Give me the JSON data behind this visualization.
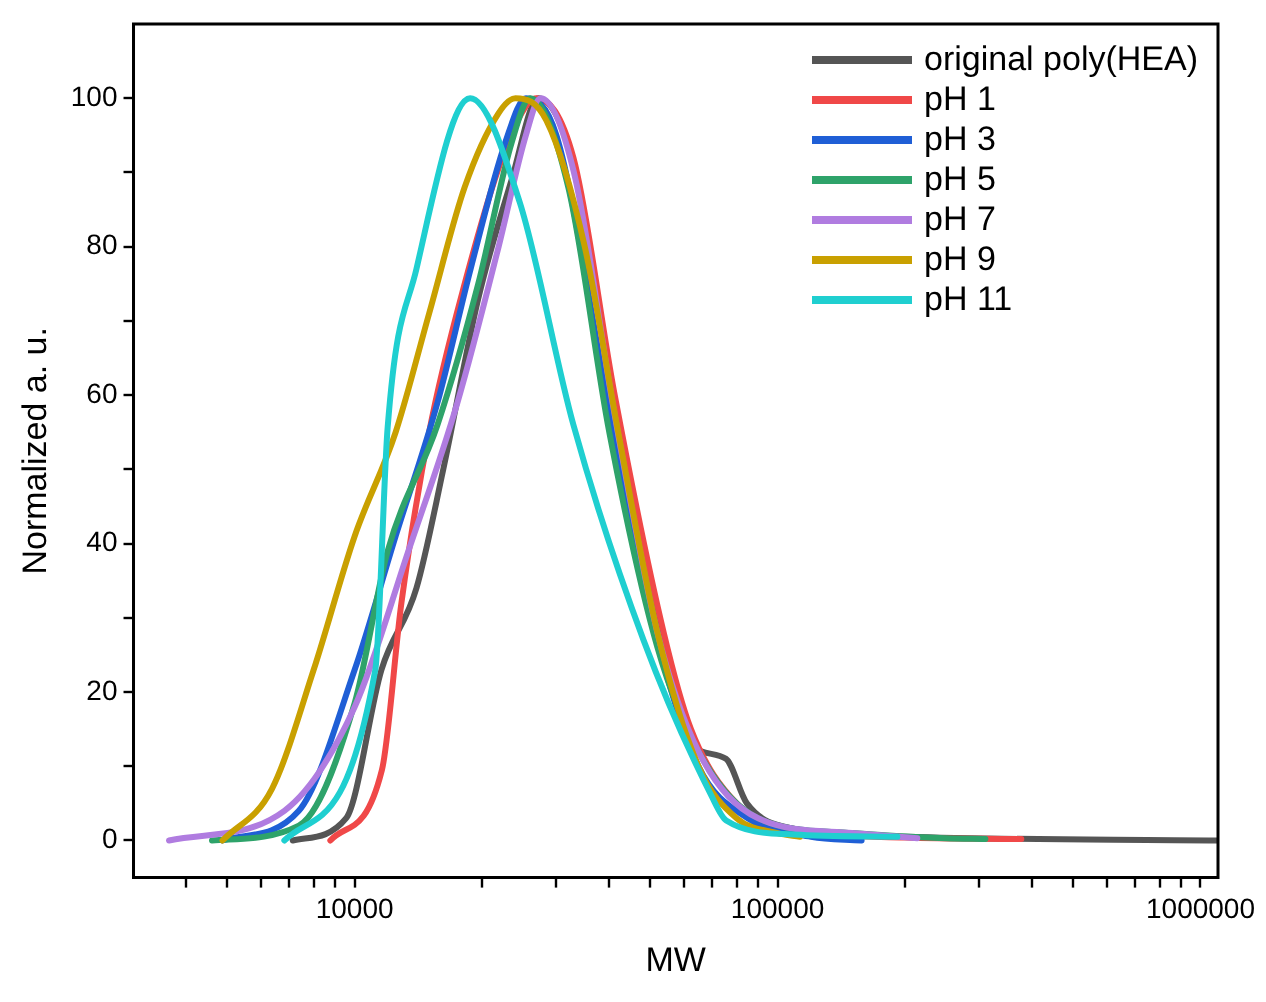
{
  "chart_data": {
    "type": "line",
    "xlabel": "MW",
    "ylabel": "Normalized a. u.",
    "log": "x",
    "grid": false,
    "legend": "top right",
    "marker": "none",
    "line_style": "solid",
    "xlim": [
      3000,
      1100000
    ],
    "xticks": [
      {
        "value": 4000,
        "label": null
      },
      {
        "value": 5000,
        "label": null
      },
      {
        "value": 6000,
        "label": null
      },
      {
        "value": 7000,
        "label": null
      },
      {
        "value": 8000,
        "label": null
      },
      {
        "value": 9000,
        "label": null
      },
      10000,
      {
        "value": 20000,
        "label": null
      },
      {
        "value": 30000,
        "label": null
      },
      {
        "value": 40000,
        "label": null
      },
      {
        "value": 50000,
        "label": null
      },
      {
        "value": 60000,
        "label": null
      },
      {
        "value": 70000,
        "label": null
      },
      {
        "value": 80000,
        "label": null
      },
      {
        "value": 90000,
        "label": null
      },
      100000,
      {
        "value": 200000,
        "label": null
      },
      {
        "value": 300000,
        "label": null
      },
      {
        "value": 400000,
        "label": null
      },
      {
        "value": 500000,
        "label": null
      },
      {
        "value": 600000,
        "label": null
      },
      {
        "value": 700000,
        "label": null
      },
      {
        "value": 800000,
        "label": null
      },
      {
        "value": 900000,
        "label": null
      },
      1000000
    ],
    "ylim": [
      -5,
      110
    ],
    "yticks": [
      0,
      {
        "value": 10,
        "label": null
      },
      20,
      {
        "value": 30,
        "label": null
      },
      40,
      {
        "value": 50,
        "label": null
      },
      60,
      {
        "value": 70,
        "label": null
      },
      80,
      {
        "value": 90,
        "label": null
      },
      100
    ],
    "series": [
      {
        "name": "original poly(HEA)",
        "color": "#555555",
        "x": [
          7140,
          9550,
          11570,
          14000,
          16200,
          19600,
          23500,
          27200,
          32900,
          41200,
          53800,
          62400,
          75500,
          84600,
          109000,
          200000,
          1100000
        ],
        "values": [
          0,
          3,
          23,
          34,
          50,
          73,
          89,
          100,
          91,
          59,
          27,
          13,
          11,
          5,
          1.6,
          0.5,
          0
        ]
      },
      {
        "name": "pH 1",
        "color": "#f04848",
        "x": [
          8760,
          11600,
          12900,
          15000,
          18200,
          22700,
          26900,
          32900,
          41200,
          53800,
          62400,
          80000,
          109000,
          200000,
          377000
        ],
        "values": [
          0,
          9.5,
          32,
          55,
          75,
          93,
          100,
          92,
          60,
          28,
          15,
          5,
          1.5,
          0.4,
          0.2
        ]
      },
      {
        "name": "pH 3",
        "color": "#1f5fd6",
        "x": [
          4870,
          7380,
          10000,
          12500,
          15700,
          18800,
          22700,
          25400,
          30000,
          40000,
          52000,
          65000,
          85000,
          120000,
          158000
        ],
        "values": [
          0,
          4,
          23,
          41,
          59,
          77,
          94,
          100,
          95,
          58,
          27,
          10,
          3,
          0.5,
          0
        ]
      },
      {
        "name": "pH 5",
        "color": "#2ea36a",
        "x": [
          4600,
          7380,
          10000,
          11970,
          15700,
          19600,
          23500,
          26000,
          32000,
          40000,
          52000,
          65000,
          90000,
          150000,
          250000,
          310000
        ],
        "values": [
          0,
          2,
          18.5,
          39,
          56,
          75,
          94,
          100,
          88,
          55,
          26,
          12,
          3,
          1,
          0.3,
          0.2
        ]
      },
      {
        "name": "pH 7",
        "color": "#b07ce0",
        "x": [
          3640,
          6820,
          10000,
          13400,
          17500,
          21900,
          25400,
          27500,
          33000,
          41000,
          52000,
          65000,
          90000,
          150000,
          214000
        ],
        "values": [
          0,
          4,
          18,
          39,
          59,
          80,
          95,
          100,
          90,
          58,
          28,
          12,
          3,
          1,
          0.3
        ]
      },
      {
        "name": "pH 9",
        "color": "#c9a000",
        "x": [
          4870,
          6380,
          8000,
          10000,
          12500,
          15000,
          18200,
          21900,
          24000,
          28400,
          35000,
          42000,
          52000,
          65000,
          80000,
          100000,
          113000
        ],
        "values": [
          0,
          7,
          23,
          41,
          55,
          71,
          88,
          98,
          100,
          97,
          80,
          55,
          28,
          10,
          3,
          1,
          0.5
        ]
      },
      {
        "name": "pH 11",
        "color": "#1fcfd0",
        "x": [
          6820,
          11190,
          11970,
          14000,
          18750,
          24560,
          32900,
          48200,
          69800,
          75600,
          109000,
          192000
        ],
        "values": [
          0,
          23,
          55.7,
          77,
          100,
          86,
          56,
          27,
          6,
          2.7,
          0.8,
          0.5
        ]
      }
    ]
  }
}
